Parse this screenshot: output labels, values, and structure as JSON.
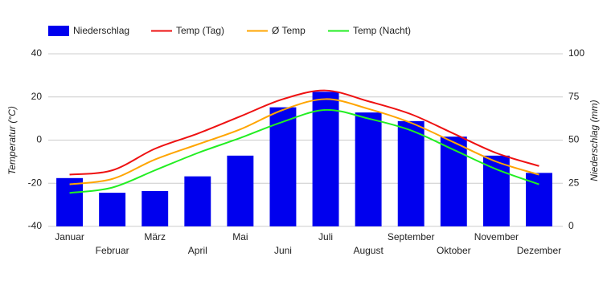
{
  "chart_data": {
    "type": "bar-line",
    "y_label": "Temperatur (°C)",
    "y2_label": "Niederschlag (mm)",
    "categories": [
      "Januar",
      "Februar",
      "März",
      "April",
      "Mai",
      "Juni",
      "Juli",
      "August",
      "September",
      "Oktober",
      "November",
      "Dezember"
    ],
    "series": [
      {
        "name": "Niederschlag",
        "type": "bar",
        "axis": "y2",
        "color": "#0000ee",
        "values": [
          28,
          19.5,
          20.5,
          29,
          41,
          69,
          78,
          66,
          61,
          52,
          41,
          31
        ]
      },
      {
        "name": "Temp (Tag)",
        "type": "line",
        "color": "#ee1111",
        "values": [
          -16,
          -14,
          -4,
          3,
          11,
          19,
          23,
          18,
          12,
          3,
          -6,
          -12
        ]
      },
      {
        "name": "Ø Temp",
        "type": "line",
        "color": "#ffa500",
        "values": [
          -20.5,
          -18,
          -9,
          -2,
          5,
          14,
          19,
          14.5,
          8,
          -1,
          -10,
          -16
        ]
      },
      {
        "name": "Temp (Nacht)",
        "type": "line",
        "color": "#22ee22",
        "values": [
          -24.5,
          -22,
          -14,
          -6,
          1,
          8.5,
          14,
          10,
          4.5,
          -4.5,
          -13.5,
          -20.5
        ]
      }
    ],
    "ylim": [
      -40,
      40
    ],
    "yticks": [
      -40,
      -20,
      0,
      20,
      40
    ],
    "y2lim": [
      0,
      100
    ],
    "y2ticks": [
      0,
      25,
      50,
      75,
      100
    ],
    "grid": true,
    "legend": "top"
  }
}
